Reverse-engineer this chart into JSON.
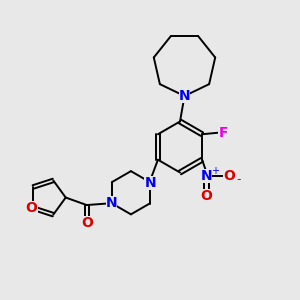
{
  "background_color": "#e8e8e8",
  "atom_colors": {
    "N": "#0000ee",
    "O": "#dd0000",
    "F": "#ee00ee",
    "bond": "#000000"
  },
  "figsize": [
    3.0,
    3.0
  ],
  "dpi": 100
}
